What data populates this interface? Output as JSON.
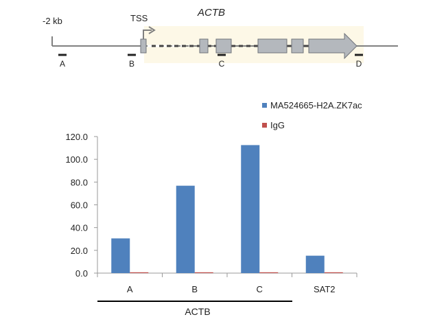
{
  "gene_map": {
    "scale_label": "-2 kb",
    "tss_label": "TSS",
    "gene_name": "ACTB",
    "regions": [
      "A",
      "B",
      "C",
      "D"
    ],
    "colors": {
      "line": "#808080",
      "exon_fill": "#b4b8bd",
      "exon_stroke": "#6f737a",
      "highlight": "#fdf8e7",
      "marker": "#222222"
    }
  },
  "chart_data": {
    "type": "bar",
    "categories": [
      "A",
      "B",
      "C",
      "SAT2"
    ],
    "series": [
      {
        "name": "MA524665-H2A.ZK7ac",
        "values": [
          30.5,
          76.8,
          112.5,
          15.3
        ],
        "color": "#4f81bd"
      },
      {
        "name": "IgG",
        "values": [
          0.4,
          0.4,
          0.4,
          0.4
        ],
        "color": "#c0504d"
      }
    ],
    "ylim": [
      0,
      120
    ],
    "yticks": [
      "0.0",
      "20.0",
      "40.0",
      "60.0",
      "80.0",
      "100.0",
      "120.0"
    ],
    "legend_position": "top-right",
    "grid": false,
    "group_label": "ACTB",
    "group_categories": [
      "A",
      "B",
      "C"
    ]
  }
}
